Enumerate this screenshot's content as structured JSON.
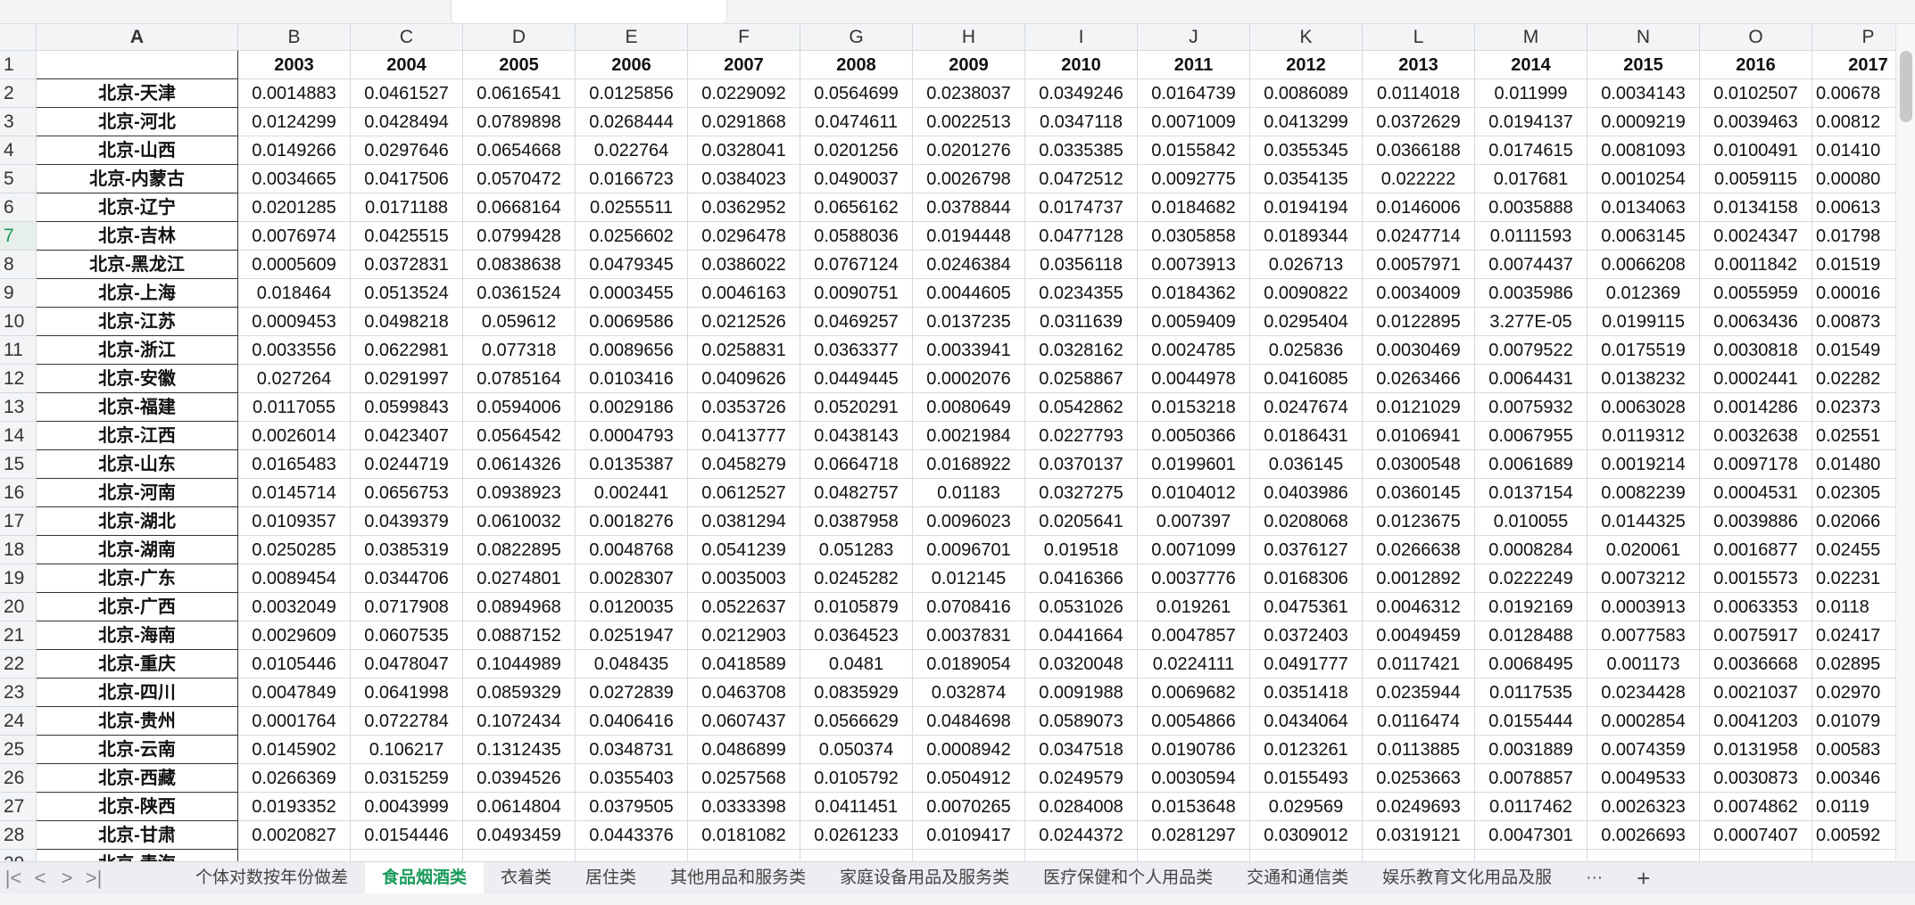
{
  "sheet": {
    "column_letters": [
      "A",
      "B",
      "C",
      "D",
      "E",
      "F",
      "G",
      "H",
      "I",
      "J",
      "K",
      "L",
      "M",
      "N",
      "O",
      "P"
    ],
    "years": [
      "2003",
      "2004",
      "2005",
      "2006",
      "2007",
      "2008",
      "2009",
      "2010",
      "2011",
      "2012",
      "2013",
      "2014",
      "2015",
      "2016",
      "2017"
    ],
    "selected_row": 7,
    "rows": [
      {
        "label": "北京-天津",
        "values": [
          "0.0014883",
          "0.0461527",
          "0.0616541",
          "0.0125856",
          "0.0229092",
          "0.0564699",
          "0.0238037",
          "0.0349246",
          "0.0164739",
          "0.0086089",
          "0.0114018",
          "0.011999",
          "0.0034143",
          "0.0102507",
          "0.00678"
        ]
      },
      {
        "label": "北京-河北",
        "values": [
          "0.0124299",
          "0.0428494",
          "0.0789898",
          "0.0268444",
          "0.0291868",
          "0.0474611",
          "0.0022513",
          "0.0347118",
          "0.0071009",
          "0.0413299",
          "0.0372629",
          "0.0194137",
          "0.0009219",
          "0.0039463",
          "0.00812"
        ]
      },
      {
        "label": "北京-山西",
        "values": [
          "0.0149266",
          "0.0297646",
          "0.0654668",
          "0.022764",
          "0.0328041",
          "0.0201256",
          "0.0201276",
          "0.0335385",
          "0.0155842",
          "0.0355345",
          "0.0366188",
          "0.0174615",
          "0.0081093",
          "0.0100491",
          "0.01410"
        ]
      },
      {
        "label": "北京-内蒙古",
        "values": [
          "0.0034665",
          "0.0417506",
          "0.0570472",
          "0.0166723",
          "0.0384023",
          "0.0490037",
          "0.0026798",
          "0.0472512",
          "0.0092775",
          "0.0354135",
          "0.022222",
          "0.017681",
          "0.0010254",
          "0.0059115",
          "0.00080"
        ]
      },
      {
        "label": "北京-辽宁",
        "values": [
          "0.0201285",
          "0.0171188",
          "0.0668164",
          "0.0255511",
          "0.0362952",
          "0.0656162",
          "0.0378844",
          "0.0174737",
          "0.0184682",
          "0.0194194",
          "0.0146006",
          "0.0035888",
          "0.0134063",
          "0.0134158",
          "0.00613"
        ]
      },
      {
        "label": "北京-吉林",
        "values": [
          "0.0076974",
          "0.0425515",
          "0.0799428",
          "0.0256602",
          "0.0296478",
          "0.0588036",
          "0.0194448",
          "0.0477128",
          "0.0305858",
          "0.0189344",
          "0.0247714",
          "0.0111593",
          "0.0063145",
          "0.0024347",
          "0.01798"
        ]
      },
      {
        "label": "北京-黑龙江",
        "values": [
          "0.0005609",
          "0.0372831",
          "0.0838638",
          "0.0479345",
          "0.0386022",
          "0.0767124",
          "0.0246384",
          "0.0356118",
          "0.0073913",
          "0.026713",
          "0.0057971",
          "0.0074437",
          "0.0066208",
          "0.0011842",
          "0.01519"
        ]
      },
      {
        "label": "北京-上海",
        "values": [
          "0.018464",
          "0.0513524",
          "0.0361524",
          "0.0003455",
          "0.0046163",
          "0.0090751",
          "0.0044605",
          "0.0234355",
          "0.0184362",
          "0.0090822",
          "0.0034009",
          "0.0035986",
          "0.012369",
          "0.0055959",
          "0.00016"
        ]
      },
      {
        "label": "北京-江苏",
        "values": [
          "0.0009453",
          "0.0498218",
          "0.059612",
          "0.0069586",
          "0.0212526",
          "0.0469257",
          "0.0137235",
          "0.0311639",
          "0.0059409",
          "0.0295404",
          "0.0122895",
          "3.277E-05",
          "0.0199115",
          "0.0063436",
          "0.00873"
        ]
      },
      {
        "label": "北京-浙江",
        "values": [
          "0.0033556",
          "0.0622981",
          "0.077318",
          "0.0089656",
          "0.0258831",
          "0.0363377",
          "0.0033941",
          "0.0328162",
          "0.0024785",
          "0.025836",
          "0.0030469",
          "0.0079522",
          "0.0175519",
          "0.0030818",
          "0.01549"
        ]
      },
      {
        "label": "北京-安徽",
        "values": [
          "0.027264",
          "0.0291997",
          "0.0785164",
          "0.0103416",
          "0.0409626",
          "0.0449445",
          "0.0002076",
          "0.0258867",
          "0.0044978",
          "0.0416085",
          "0.0263466",
          "0.0064431",
          "0.0138232",
          "0.0002441",
          "0.02282"
        ]
      },
      {
        "label": "北京-福建",
        "values": [
          "0.0117055",
          "0.0599843",
          "0.0594006",
          "0.0029186",
          "0.0353726",
          "0.0520291",
          "0.0080649",
          "0.0542862",
          "0.0153218",
          "0.0247674",
          "0.0121029",
          "0.0075932",
          "0.0063028",
          "0.0014286",
          "0.02373"
        ]
      },
      {
        "label": "北京-江西",
        "values": [
          "0.0026014",
          "0.0423407",
          "0.0564542",
          "0.0004793",
          "0.0413777",
          "0.0438143",
          "0.0021984",
          "0.0227793",
          "0.0050366",
          "0.0186431",
          "0.0106941",
          "0.0067955",
          "0.0119312",
          "0.0032638",
          "0.02551"
        ]
      },
      {
        "label": "北京-山东",
        "values": [
          "0.0165483",
          "0.0244719",
          "0.0614326",
          "0.0135387",
          "0.0458279",
          "0.0664718",
          "0.0168922",
          "0.0370137",
          "0.0199601",
          "0.036145",
          "0.0300548",
          "0.0061689",
          "0.0019214",
          "0.0097178",
          "0.01480"
        ]
      },
      {
        "label": "北京-河南",
        "values": [
          "0.0145714",
          "0.0656753",
          "0.0938923",
          "0.002441",
          "0.0612527",
          "0.0482757",
          "0.01183",
          "0.0327275",
          "0.0104012",
          "0.0403986",
          "0.0360145",
          "0.0137154",
          "0.0082239",
          "0.0004531",
          "0.02305"
        ]
      },
      {
        "label": "北京-湖北",
        "values": [
          "0.0109357",
          "0.0439379",
          "0.0610032",
          "0.0018276",
          "0.0381294",
          "0.0387958",
          "0.0096023",
          "0.0205641",
          "0.007397",
          "0.0208068",
          "0.0123675",
          "0.010055",
          "0.0144325",
          "0.0039886",
          "0.02066"
        ]
      },
      {
        "label": "北京-湖南",
        "values": [
          "0.0250285",
          "0.0385319",
          "0.0822895",
          "0.0048768",
          "0.0541239",
          "0.051283",
          "0.0096701",
          "0.019518",
          "0.0071099",
          "0.0376127",
          "0.0266638",
          "0.0008284",
          "0.020061",
          "0.0016877",
          "0.02455"
        ]
      },
      {
        "label": "北京-广东",
        "values": [
          "0.0089454",
          "0.0344706",
          "0.0274801",
          "0.0028307",
          "0.0035003",
          "0.0245282",
          "0.012145",
          "0.0416366",
          "0.0037776",
          "0.0168306",
          "0.0012892",
          "0.0222249",
          "0.0073212",
          "0.0015573",
          "0.02231"
        ]
      },
      {
        "label": "北京-广西",
        "values": [
          "0.0032049",
          "0.0717908",
          "0.0894968",
          "0.0120035",
          "0.0522637",
          "0.0105879",
          "0.0708416",
          "0.0531026",
          "0.019261",
          "0.0475361",
          "0.0046312",
          "0.0192169",
          "0.0003913",
          "0.0063353",
          "0.0118"
        ]
      },
      {
        "label": "北京-海南",
        "values": [
          "0.0029609",
          "0.0607535",
          "0.0887152",
          "0.0251947",
          "0.0212903",
          "0.0364523",
          "0.0037831",
          "0.0441664",
          "0.0047857",
          "0.0372403",
          "0.0049459",
          "0.0128488",
          "0.0077583",
          "0.0075917",
          "0.02417"
        ]
      },
      {
        "label": "北京-重庆",
        "values": [
          "0.0105446",
          "0.0478047",
          "0.1044989",
          "0.048435",
          "0.0418589",
          "0.0481",
          "0.0189054",
          "0.0320048",
          "0.0224111",
          "0.0491777",
          "0.0117421",
          "0.0068495",
          "0.001173",
          "0.0036668",
          "0.02895"
        ]
      },
      {
        "label": "北京-四川",
        "values": [
          "0.0047849",
          "0.0641998",
          "0.0859329",
          "0.0272839",
          "0.0463708",
          "0.0835929",
          "0.032874",
          "0.0091988",
          "0.0069682",
          "0.0351418",
          "0.0235944",
          "0.0117535",
          "0.0234428",
          "0.0021037",
          "0.02970"
        ]
      },
      {
        "label": "北京-贵州",
        "values": [
          "0.0001764",
          "0.0722784",
          "0.1072434",
          "0.0406416",
          "0.0607437",
          "0.0566629",
          "0.0484698",
          "0.0589073",
          "0.0054866",
          "0.0434064",
          "0.0116474",
          "0.0155444",
          "0.0002854",
          "0.0041203",
          "0.01079"
        ]
      },
      {
        "label": "北京-云南",
        "values": [
          "0.0145902",
          "0.106217",
          "0.1312435",
          "0.0348731",
          "0.0486899",
          "0.050374",
          "0.0008942",
          "0.0347518",
          "0.0190786",
          "0.0123261",
          "0.0113885",
          "0.0031889",
          "0.0074359",
          "0.0131958",
          "0.00583"
        ]
      },
      {
        "label": "北京-西藏",
        "values": [
          "0.0266369",
          "0.0315259",
          "0.0394526",
          "0.0355403",
          "0.0257568",
          "0.0105792",
          "0.0504912",
          "0.0249579",
          "0.0030594",
          "0.0155493",
          "0.0253663",
          "0.0078857",
          "0.0049533",
          "0.0030873",
          "0.00346"
        ]
      },
      {
        "label": "北京-陕西",
        "values": [
          "0.0193352",
          "0.0043999",
          "0.0614804",
          "0.0379505",
          "0.0333398",
          "0.0411451",
          "0.0070265",
          "0.0284008",
          "0.0153648",
          "0.029569",
          "0.0249693",
          "0.0117462",
          "0.0026323",
          "0.0074862",
          "0.0119"
        ]
      },
      {
        "label": "北京-甘肃",
        "values": [
          "0.0020827",
          "0.0154446",
          "0.0493459",
          "0.0443376",
          "0.0181082",
          "0.0261233",
          "0.0109417",
          "0.0244372",
          "0.0281297",
          "0.0309012",
          "0.0319121",
          "0.0047301",
          "0.0026693",
          "0.0007407",
          "0.00592"
        ]
      },
      {
        "label": "北京-青海",
        "values": []
      }
    ]
  },
  "tabs": {
    "nav": [
      "|<",
      "<",
      ">",
      ">|"
    ],
    "sheets": [
      "个体对数按年份做差",
      "食品烟酒类",
      "衣着类",
      "居住类",
      "其他用品和服务类",
      "家庭设备用品及服务类",
      "医疗保健和个人用品类",
      "交通和通信类",
      "娱乐教育文化用品及服"
    ],
    "active": 1,
    "more": "···",
    "add": "+"
  },
  "colors": {
    "accent": "#1a9b5a"
  }
}
